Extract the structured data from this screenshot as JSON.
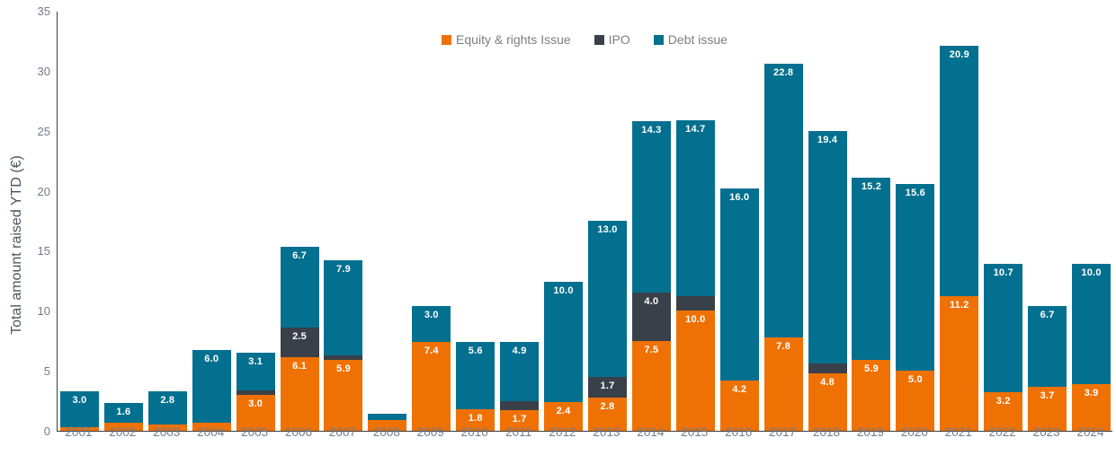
{
  "chart_data": {
    "type": "bar",
    "stacked": true,
    "ylabel": "Total amount raised YTD (€)",
    "xlabel": "",
    "ylim": [
      0,
      35
    ],
    "y_ticks": [
      0,
      5,
      10,
      15,
      20,
      25,
      30,
      35
    ],
    "grid": false,
    "legend_position": "top-center",
    "categories": [
      "2001",
      "2002",
      "2003",
      "2004",
      "2005",
      "2006",
      "2007",
      "2008",
      "2009",
      "2010",
      "2011",
      "2012",
      "2013",
      "2014",
      "2015",
      "2016",
      "2017",
      "2018",
      "2019",
      "2020",
      "2021",
      "2022",
      "2023",
      "2024"
    ],
    "series": [
      {
        "name": "Equity & rights Issue",
        "color": "#EF7104",
        "values": [
          0.3,
          0.7,
          0.5,
          0.7,
          3.0,
          6.1,
          5.9,
          0.9,
          7.4,
          1.8,
          1.7,
          2.4,
          2.8,
          7.5,
          10.0,
          4.2,
          7.8,
          4.8,
          5.9,
          5.0,
          11.2,
          3.2,
          3.7,
          3.9
        ],
        "labels": [
          null,
          null,
          null,
          null,
          "3.0",
          "6.1",
          "5.9",
          null,
          "7.4",
          "1.8",
          "1.7",
          "2.4",
          "2.8",
          "7.5",
          "10.0",
          "4.2",
          "7.8",
          "4.8",
          "5.9",
          "5.0",
          "11.2",
          "3.2",
          "3.7",
          "3.9"
        ]
      },
      {
        "name": "IPO",
        "color": "#3A4049",
        "values": [
          0,
          0,
          0,
          0,
          0.4,
          2.5,
          0.4,
          0,
          0,
          0,
          0.8,
          0,
          1.7,
          4.0,
          1.2,
          0,
          0,
          0.8,
          0,
          0,
          0,
          0,
          0,
          0
        ],
        "labels": [
          null,
          null,
          null,
          null,
          null,
          "2.5",
          null,
          null,
          null,
          null,
          null,
          null,
          "1.7",
          "4.0",
          null,
          null,
          null,
          null,
          null,
          null,
          null,
          null,
          null,
          null
        ]
      },
      {
        "name": "Debt issue",
        "color": "#04708F",
        "values": [
          3.0,
          1.6,
          2.8,
          6.0,
          3.1,
          6.7,
          7.9,
          0.5,
          3.0,
          5.6,
          4.9,
          10.0,
          13.0,
          14.3,
          14.7,
          16.0,
          22.8,
          19.4,
          15.2,
          15.6,
          20.9,
          10.7,
          6.7,
          10.0
        ],
        "labels": [
          "3.0",
          "1.6",
          "2.8",
          "6.0",
          "3.1",
          "6.7",
          "7.9",
          null,
          "3.0",
          "5.6",
          "4.9",
          "10.0",
          "13.0",
          "14.3",
          "14.7",
          "16.0",
          "22.8",
          "19.4",
          "15.2",
          "15.6",
          "20.9",
          "10.7",
          "6.7",
          "10.0"
        ]
      }
    ],
    "colors": {
      "axis_line": "#3d3d3d",
      "tick_text": "#727b8c",
      "axis_title_text": "#4e5560",
      "legend_text": "#7e7e7e",
      "bar_label_text": "#ffffff",
      "background": "#ffffff"
    }
  }
}
